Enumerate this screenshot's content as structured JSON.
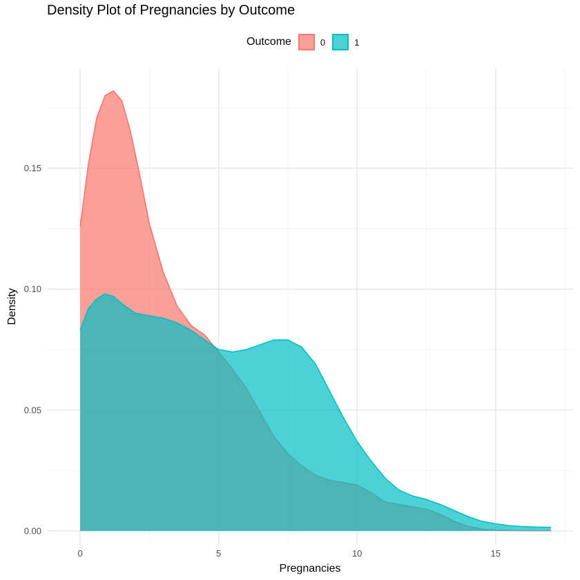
{
  "chart_data": {
    "type": "area",
    "title": "Density Plot of Pregnancies by Outcome",
    "xlabel": "Pregnancies",
    "ylabel": "Density",
    "xlim": [
      -1.2,
      17.8
    ],
    "ylim": [
      -0.006,
      0.191
    ],
    "x_ticks": [
      0,
      5,
      10,
      15
    ],
    "x_tick_labels": [
      "0",
      "5",
      "10",
      "15"
    ],
    "y_ticks": [
      0,
      0.05,
      0.1,
      0.15
    ],
    "y_tick_labels": [
      "0.00",
      "0.05",
      "0.10",
      "0.15"
    ],
    "grid": true,
    "legend": {
      "title": "Outcome",
      "placement": "top"
    },
    "series": [
      {
        "name": "0",
        "fill": "#F8766D",
        "stroke": "#F8766D",
        "fill_opacity": 0.7,
        "x": [
          0,
          0.3,
          0.6,
          0.9,
          1.2,
          1.5,
          1.8,
          2.1,
          2.5,
          3.0,
          3.5,
          4.0,
          4.5,
          5.0,
          5.5,
          6.0,
          6.5,
          7.0,
          7.5,
          8.0,
          8.5,
          9.0,
          9.5,
          10.0,
          10.5,
          11.0,
          11.5,
          12.0,
          12.5,
          13.0,
          13.5,
          14.0,
          14.5,
          15.0,
          15.5,
          16.0,
          16.5,
          17.0
        ],
        "y": [
          0.126,
          0.152,
          0.171,
          0.18,
          0.182,
          0.178,
          0.166,
          0.15,
          0.127,
          0.107,
          0.093,
          0.085,
          0.081,
          0.074,
          0.067,
          0.059,
          0.049,
          0.039,
          0.032,
          0.027,
          0.023,
          0.021,
          0.02,
          0.019,
          0.016,
          0.012,
          0.011,
          0.01,
          0.009,
          0.007,
          0.004,
          0.002,
          0.0008,
          0.0004,
          0.0002,
          0.0001,
          0.0001,
          0.0001
        ]
      },
      {
        "name": "1",
        "fill": "#00BFC4",
        "stroke": "#00BFC4",
        "fill_opacity": 0.7,
        "x": [
          0,
          0.3,
          0.6,
          0.9,
          1.2,
          1.5,
          2.0,
          2.5,
          3.0,
          3.5,
          4.0,
          4.5,
          5.0,
          5.5,
          6.0,
          6.5,
          7.0,
          7.5,
          8.0,
          8.5,
          9.0,
          9.5,
          10.0,
          10.5,
          11.0,
          11.5,
          12.0,
          12.5,
          13.0,
          13.5,
          14.0,
          14.5,
          15.0,
          15.5,
          16.0,
          16.5,
          17.0
        ],
        "y": [
          0.083,
          0.092,
          0.096,
          0.098,
          0.097,
          0.094,
          0.09,
          0.089,
          0.088,
          0.086,
          0.083,
          0.079,
          0.075,
          0.074,
          0.075,
          0.077,
          0.079,
          0.079,
          0.076,
          0.069,
          0.058,
          0.047,
          0.037,
          0.029,
          0.022,
          0.017,
          0.0145,
          0.013,
          0.011,
          0.0085,
          0.006,
          0.004,
          0.003,
          0.0022,
          0.0018,
          0.0016,
          0.0015
        ]
      }
    ]
  }
}
